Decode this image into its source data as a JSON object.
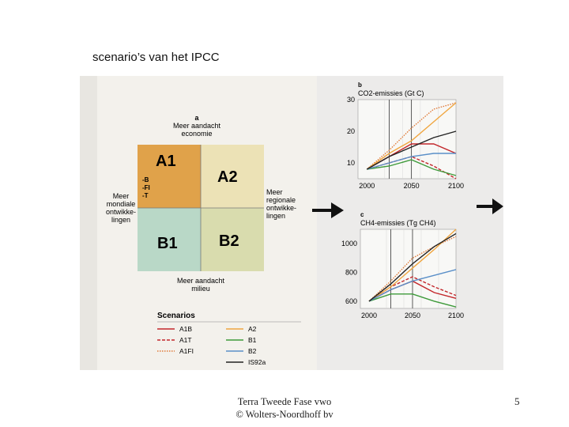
{
  "slide": {
    "title": "scenario’s van het IPCC",
    "footer_line1": "Terra Tweede Fase vwo",
    "footer_line2": "© Wolters-Noordhoff bv",
    "page_number": "5"
  },
  "quadrant": {
    "panel_label": "a",
    "top_axis_line1": "Meer aandacht",
    "top_axis_line2": "economie",
    "bottom_axis_line1": "Meer aandacht",
    "bottom_axis_line2": "milieu",
    "left_axis_lines": [
      "Meer",
      "mondiale",
      "ontwikke-",
      "lingen"
    ],
    "right_axis_lines": [
      "Meer",
      "regionale",
      "ontwikke-",
      "lingen"
    ],
    "cells": [
      "A1",
      "A2",
      "B1",
      "B2"
    ],
    "a1_sub": [
      "-B",
      "-FI",
      "-T"
    ],
    "colors": {
      "A1": "#e0a24a",
      "A2": "#ece2b6",
      "B1": "#b9d8c7",
      "B2": "#d9dcae"
    }
  },
  "legend": {
    "title": "Scenarios",
    "items": [
      {
        "label": "A1B",
        "color": "#c3272b",
        "style": "solid"
      },
      {
        "label": "A1T",
        "color": "#c3272b",
        "style": "dashed"
      },
      {
        "label": "A1FI",
        "color": "#e07b3a",
        "style": "dotted"
      },
      {
        "label": "A2",
        "color": "#f0a640",
        "style": "solid"
      },
      {
        "label": "B1",
        "color": "#3e9a3a",
        "style": "solid"
      },
      {
        "label": "B2",
        "color": "#5a8fc8",
        "style": "solid"
      },
      {
        "label": "IS92a",
        "color": "#222222",
        "style": "solid"
      }
    ]
  },
  "chart_data": [
    {
      "type": "line",
      "panel": "b",
      "title": "CO2-emissies (Gt C)",
      "x": [
        2000,
        2025,
        2050,
        2075,
        2100
      ],
      "xlim": [
        1990,
        2100
      ],
      "ylim": [
        5,
        30
      ],
      "yticks": [
        10,
        20,
        30
      ],
      "xticks": [
        2000,
        2050,
        2100
      ],
      "series": [
        {
          "name": "A1B",
          "values": [
            8,
            12,
            16,
            16,
            13
          ]
        },
        {
          "name": "A1T",
          "values": [
            8,
            10,
            12,
            9,
            5
          ]
        },
        {
          "name": "A1FI",
          "values": [
            8,
            14,
            21,
            27,
            29
          ]
        },
        {
          "name": "A2",
          "values": [
            8,
            13,
            17,
            23,
            29
          ]
        },
        {
          "name": "B1",
          "values": [
            8,
            9,
            11,
            8,
            6
          ]
        },
        {
          "name": "B2",
          "values": [
            8,
            10,
            12,
            13,
            13
          ]
        },
        {
          "name": "IS92a",
          "values": [
            8,
            12,
            15,
            18,
            20
          ]
        }
      ]
    },
    {
      "type": "line",
      "panel": "c",
      "title": "CH4-emissies (Tg CH4)",
      "x": [
        2000,
        2025,
        2050,
        2075,
        2100
      ],
      "xlim": [
        1990,
        2100
      ],
      "ylim": [
        550,
        1100
      ],
      "yticks": [
        600,
        800,
        1000
      ],
      "xticks": [
        2000,
        2050,
        2100
      ],
      "series": [
        {
          "name": "A1B",
          "values": [
            600,
            680,
            740,
            660,
            620
          ]
        },
        {
          "name": "A1T",
          "values": [
            600,
            700,
            770,
            700,
            640
          ]
        },
        {
          "name": "A1FI",
          "values": [
            600,
            740,
            900,
            980,
            1050
          ]
        },
        {
          "name": "A2",
          "values": [
            600,
            700,
            830,
            960,
            1100
          ]
        },
        {
          "name": "B1",
          "values": [
            600,
            650,
            650,
            600,
            560
          ]
        },
        {
          "name": "B2",
          "values": [
            600,
            680,
            740,
            780,
            820
          ]
        },
        {
          "name": "IS92a",
          "values": [
            600,
            720,
            860,
            980,
            1070
          ]
        }
      ]
    }
  ]
}
